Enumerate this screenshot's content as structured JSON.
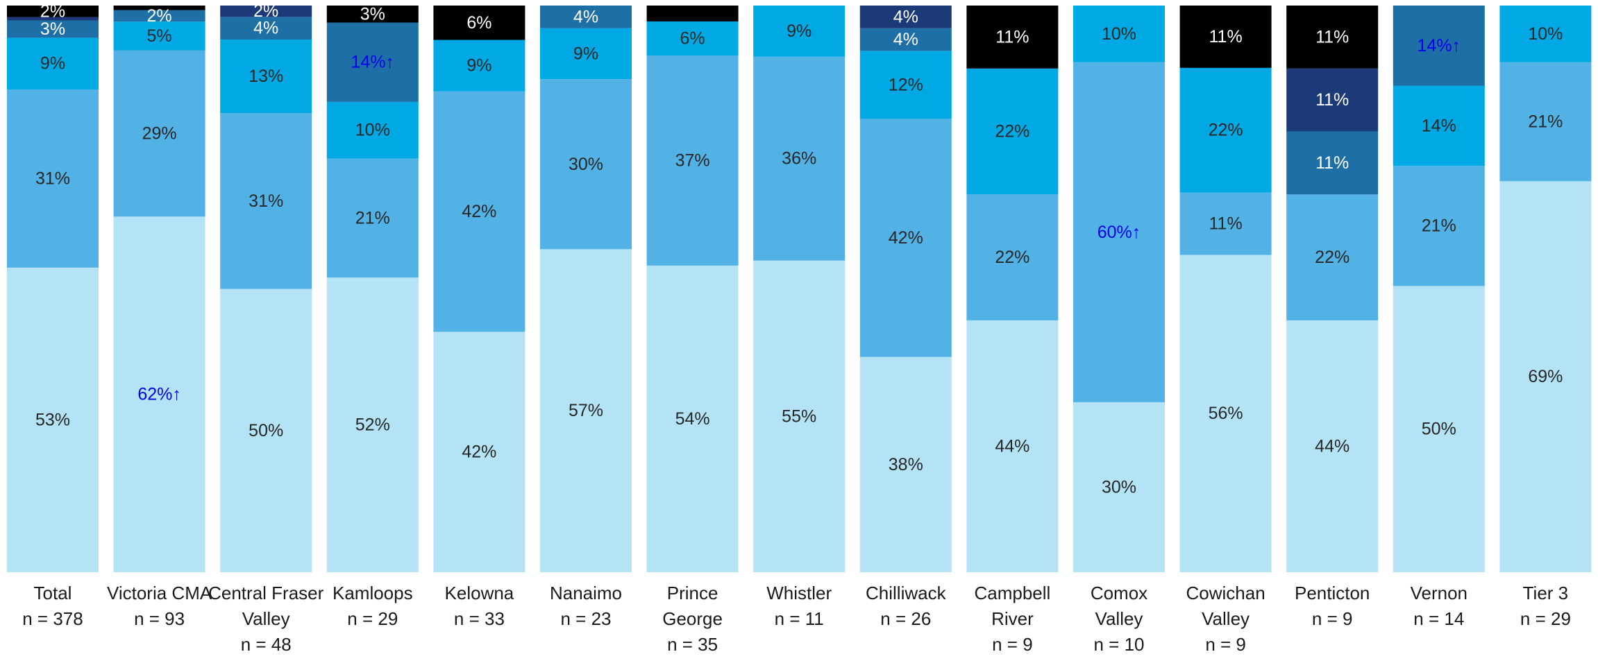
{
  "chart_data": {
    "type": "bar",
    "stacked": true,
    "normalized": true,
    "orientation": "vertical",
    "legend": "none",
    "grid": false,
    "ylim": [
      0,
      100
    ],
    "unit": "%",
    "categories": [
      {
        "name": "Total",
        "n": "n = 378"
      },
      {
        "name": "Victoria CMA",
        "n": "n = 93"
      },
      {
        "name": "Central Fraser Valley",
        "n": "n = 48"
      },
      {
        "name": "Kamloops",
        "n": "n = 29"
      },
      {
        "name": "Kelowna",
        "n": "n = 33"
      },
      {
        "name": "Nanaimo",
        "n": "n = 23"
      },
      {
        "name": "Prince George",
        "n": "n = 35"
      },
      {
        "name": "Whistler",
        "n": "n = 11"
      },
      {
        "name": "Chilliwack",
        "n": "n = 26"
      },
      {
        "name": "Campbell River",
        "n": "n = 9"
      },
      {
        "name": "Comox Valley",
        "n": "n = 10"
      },
      {
        "name": "Cowichan Valley",
        "n": "n = 9"
      },
      {
        "name": "Penticton",
        "n": "n = 9"
      },
      {
        "name": "Vernon",
        "n": "n = 14"
      },
      {
        "name": "Tier 3",
        "n": "n = 29"
      }
    ],
    "series_colors": [
      "#b3e3f5",
      "#52b2e5",
      "#00a9e4",
      "#1e6fa5",
      "#1d3a78",
      "#000000"
    ],
    "highlight_color": "#0000ee",
    "series": [
      {
        "values": [
          53,
          62,
          50,
          52,
          42,
          57,
          54,
          55,
          38,
          44,
          30,
          56,
          44,
          50,
          69
        ],
        "labels": [
          "53%",
          "62%↑",
          "50%",
          "52%",
          "42%",
          "57%",
          "54%",
          "55%",
          "38%",
          "44%",
          "30%",
          "56%",
          "44%",
          "50%",
          "69%"
        ],
        "highlight": [
          false,
          true,
          false,
          false,
          false,
          false,
          false,
          false,
          false,
          false,
          false,
          false,
          false,
          false,
          false
        ]
      },
      {
        "values": [
          31,
          29,
          31,
          21,
          42,
          30,
          37,
          36,
          42,
          22,
          60,
          11,
          22,
          21,
          21
        ],
        "labels": [
          "31%",
          "29%",
          "31%",
          "21%",
          "42%",
          "30%",
          "37%",
          "36%",
          "42%",
          "22%",
          "60%↑",
          "11%",
          "22%",
          "21%",
          "21%"
        ],
        "highlight": [
          false,
          false,
          false,
          false,
          false,
          false,
          false,
          false,
          false,
          false,
          true,
          false,
          false,
          false,
          false
        ]
      },
      {
        "values": [
          9,
          5,
          13,
          10,
          9,
          9,
          6,
          9,
          12,
          22,
          10,
          22,
          0,
          14,
          10
        ],
        "labels": [
          "9%",
          "5%",
          "13%",
          "10%",
          "9%",
          "9%",
          "6%",
          "9%",
          "12%",
          "22%",
          "10%",
          "22%",
          "",
          "14%",
          "10%"
        ],
        "highlight": [
          false,
          false,
          false,
          false,
          false,
          false,
          false,
          false,
          false,
          false,
          false,
          false,
          false,
          false,
          false
        ]
      },
      {
        "values": [
          3,
          2,
          4,
          14,
          0,
          4,
          0,
          0,
          4,
          0,
          0,
          0,
          11,
          14,
          0
        ],
        "labels": [
          "3%",
          "2%",
          "4%",
          "14%↑",
          "",
          "4%",
          "",
          "",
          "4%",
          "",
          "",
          "",
          "11%",
          "14%↑",
          ""
        ],
        "highlight": [
          false,
          false,
          false,
          true,
          false,
          false,
          false,
          false,
          false,
          false,
          false,
          false,
          false,
          true,
          false
        ]
      },
      {
        "values": [
          0.6,
          0,
          2,
          0,
          0,
          0,
          0,
          0,
          4,
          0,
          0,
          0,
          11,
          0,
          0
        ],
        "labels": [
          "",
          "",
          "2%",
          "",
          "",
          "",
          "",
          "",
          "4%",
          "",
          "",
          "",
          "11%",
          "",
          ""
        ],
        "highlight": [
          false,
          false,
          false,
          false,
          false,
          false,
          false,
          false,
          false,
          false,
          false,
          false,
          false,
          false,
          false
        ]
      },
      {
        "values": [
          2,
          0.8,
          0,
          3,
          6,
          0,
          2.8,
          0,
          0,
          11,
          0,
          11,
          11,
          0,
          0
        ],
        "labels": [
          "2%",
          "",
          "",
          "3%",
          "6%",
          "",
          "",
          "",
          "",
          "11%",
          "",
          "11%",
          "11%",
          "",
          ""
        ],
        "highlight": [
          false,
          false,
          false,
          false,
          false,
          false,
          false,
          false,
          false,
          false,
          false,
          false,
          false,
          false,
          false
        ]
      }
    ]
  }
}
